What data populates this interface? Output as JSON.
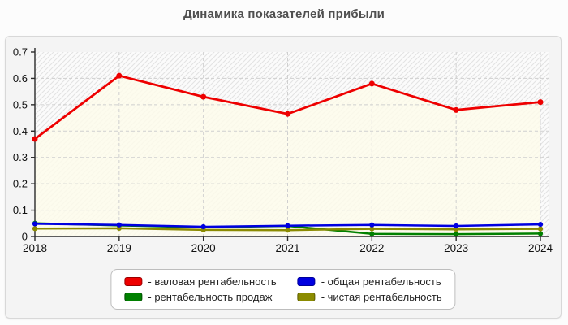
{
  "page": {
    "title": "Динамика показателей прибыли"
  },
  "chart_data": {
    "type": "line",
    "title": "Динамика показателей прибыли",
    "xlabel": "",
    "ylabel": "",
    "categories": [
      "2018",
      "2019",
      "2020",
      "2021",
      "2022",
      "2023",
      "2024"
    ],
    "series": [
      {
        "name": "валовая рентабельность",
        "color": "#ee0000",
        "area_fill": "rgba(253,251,235,0.85)",
        "values": [
          0.37,
          0.61,
          0.53,
          0.465,
          0.58,
          0.48,
          0.51
        ]
      },
      {
        "name": "рентабельность продаж",
        "color": "#008000",
        "values": [
          0.05,
          0.042,
          0.035,
          0.04,
          0.01,
          0.009,
          0.011
        ]
      },
      {
        "name": "чистая рентабельность",
        "color": "#8b8b00",
        "values": [
          0.03,
          0.031,
          0.025,
          0.024,
          0.029,
          0.027,
          0.029
        ]
      },
      {
        "name": "общая рентабельность",
        "color": "#0000e0",
        "values": [
          0.048,
          0.044,
          0.037,
          0.041,
          0.044,
          0.04,
          0.046
        ]
      }
    ],
    "ylim": [
      0,
      0.7
    ],
    "yticks": [
      0,
      0.1,
      0.2,
      0.3,
      0.4,
      0.5,
      0.6,
      0.7
    ],
    "ytick_labels": [
      "0",
      "0.1",
      "0.2",
      "0.3",
      "0.4",
      "0.5",
      "0.6",
      "0.7"
    ],
    "grid": true,
    "grid_style": "dashed",
    "legend_position": "bottom"
  },
  "legend": {
    "items": [
      {
        "label": "- валовая рентабельность",
        "color": "#ee0000",
        "border": "#990000"
      },
      {
        "label": "- общая рентабельность",
        "color": "#0000e0",
        "border": "#000099"
      },
      {
        "label": "- рентабельность продаж",
        "color": "#008000",
        "border": "#004d00"
      },
      {
        "label": "- чистая рентабельность",
        "color": "#8b8b00",
        "border": "#5c5c00"
      }
    ]
  },
  "colors": {
    "panel_bg": "#f4f4f4",
    "panel_border": "#d8d8d8",
    "plot_bg": "#fbfbfb",
    "hatch_line": "#e2e2e2",
    "gridline": "#cfcfcf",
    "axis": "#2b2b2b",
    "tick_label": "#111111",
    "title": "#4f4f4f"
  }
}
